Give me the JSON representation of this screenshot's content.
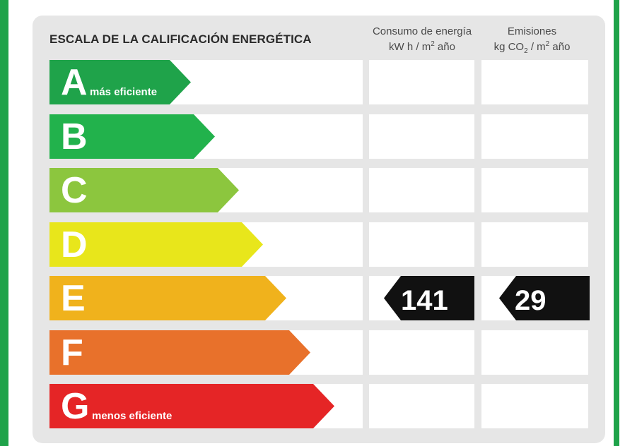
{
  "title": "ESCALA DE LA CALIFICACIÓN ENERGÉTICA",
  "columns": {
    "consumo": {
      "line1": "Consumo de energía",
      "unit_prefix": "kW h  / m",
      "unit_exp": "2",
      "unit_suffix": " año"
    },
    "emisiones": {
      "line1": "Emisiones",
      "unit_prefix": "kg CO",
      "unit_sub": "2",
      "unit_suffix": "  / m",
      "unit_exp": "2",
      "unit_suffix2": " año"
    }
  },
  "ratings": [
    {
      "letter": "A",
      "caption": "más eficiente",
      "color": "#1fa34a"
    },
    {
      "letter": "B",
      "caption": "",
      "color": "#22b24c"
    },
    {
      "letter": "C",
      "caption": "",
      "color": "#8cc63e"
    },
    {
      "letter": "D",
      "caption": "",
      "color": "#e8e61b"
    },
    {
      "letter": "E",
      "caption": "",
      "color": "#f0b21c"
    },
    {
      "letter": "F",
      "caption": "",
      "color": "#e8712b"
    },
    {
      "letter": "G",
      "caption": "menos eficiente",
      "color": "#e52526"
    }
  ],
  "result": {
    "rating": "E",
    "consumo_value": "141",
    "emisiones_value": "29",
    "badge_color": "#111111"
  }
}
